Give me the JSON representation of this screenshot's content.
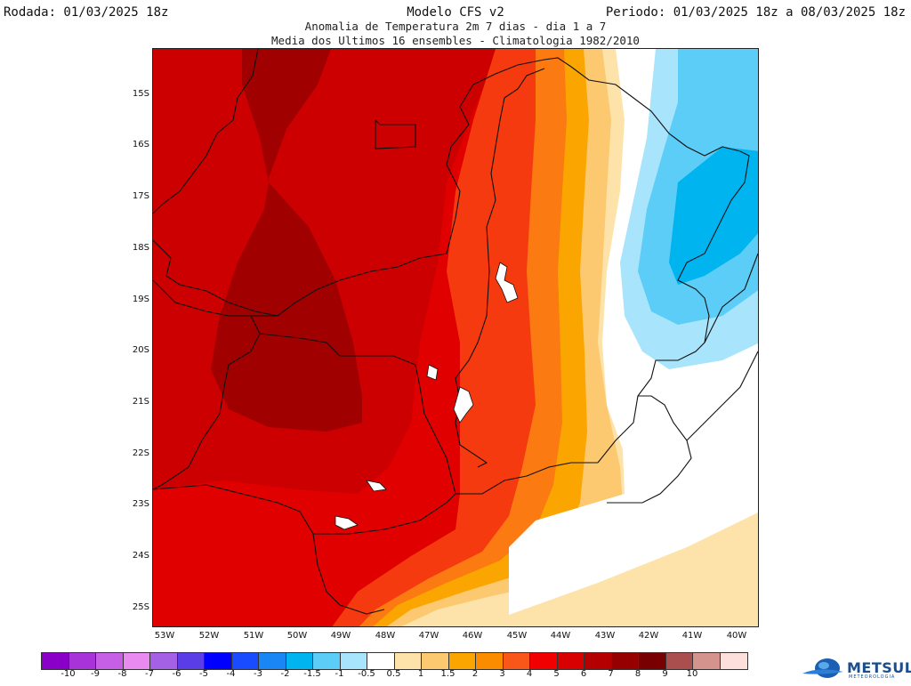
{
  "header": {
    "run": "Rodada: 01/03/2025 18z",
    "period": "Periodo: 01/03/2025 18z a 08/03/2025 18z",
    "model": "Modelo CFS v2",
    "subtitle1": "Anomalia de Temperatura 2m 7 dias - dia 1 a 7",
    "subtitle2": "Media dos Ultimos 16 ensembles - Climatologia 1982/2010"
  },
  "map": {
    "lat_labels": [
      "15S",
      "16S",
      "17S",
      "18S",
      "19S",
      "20S",
      "21S",
      "22S",
      "23S",
      "24S",
      "25S"
    ],
    "lon_labels": [
      "53W",
      "52W",
      "51W",
      "50W",
      "49W",
      "48W",
      "47W",
      "46W",
      "45W",
      "44W",
      "43W",
      "42W",
      "41W",
      "40W"
    ],
    "lat_range": [
      -25.4,
      -14.1
    ],
    "lon_range": [
      -53.3,
      -39.6
    ]
  },
  "colorbar": {
    "colors": [
      "#8b00c8",
      "#a833d8",
      "#c75ee6",
      "#e88aef",
      "#a561e6",
      "#5a3de6",
      "#0000ff",
      "#1a4cff",
      "#1a86f5",
      "#00b4f0",
      "#5ccdf7",
      "#a8e4fb",
      "#ffffff",
      "#fde3aa",
      "#fcc870",
      "#fba600",
      "#fb8c00",
      "#f9561a",
      "#f00000",
      "#d80000",
      "#b40000",
      "#960000",
      "#780000",
      "#aa4e4e",
      "#d4938c",
      "#fde0dc"
    ],
    "labels": [
      "-10",
      "-9",
      "-8",
      "-7",
      "-6",
      "-5",
      "-4",
      "-3",
      "-2",
      "-1.5",
      "-1",
      "-0.5",
      "0.5",
      "1",
      "1.5",
      "2",
      "3",
      "4",
      "5",
      "6",
      "7",
      "8",
      "9",
      "10"
    ]
  },
  "legend_colors": {
    "warm_max": "#8c0000",
    "warm_strong": "#cc0000",
    "warm": "#e00000",
    "red_orange": "#f53a0f",
    "orange": "#fb7a12",
    "amber": "#fba600",
    "light_orange": "#fcc870",
    "peach": "#fde3aa",
    "neutral": "#ffffff",
    "light_blue": "#a8e4fb",
    "blue": "#5ccdf7",
    "deep_blue": "#00b4f0"
  },
  "logo": {
    "name": "METSUL",
    "tagline": "METEOROLOGIA"
  }
}
